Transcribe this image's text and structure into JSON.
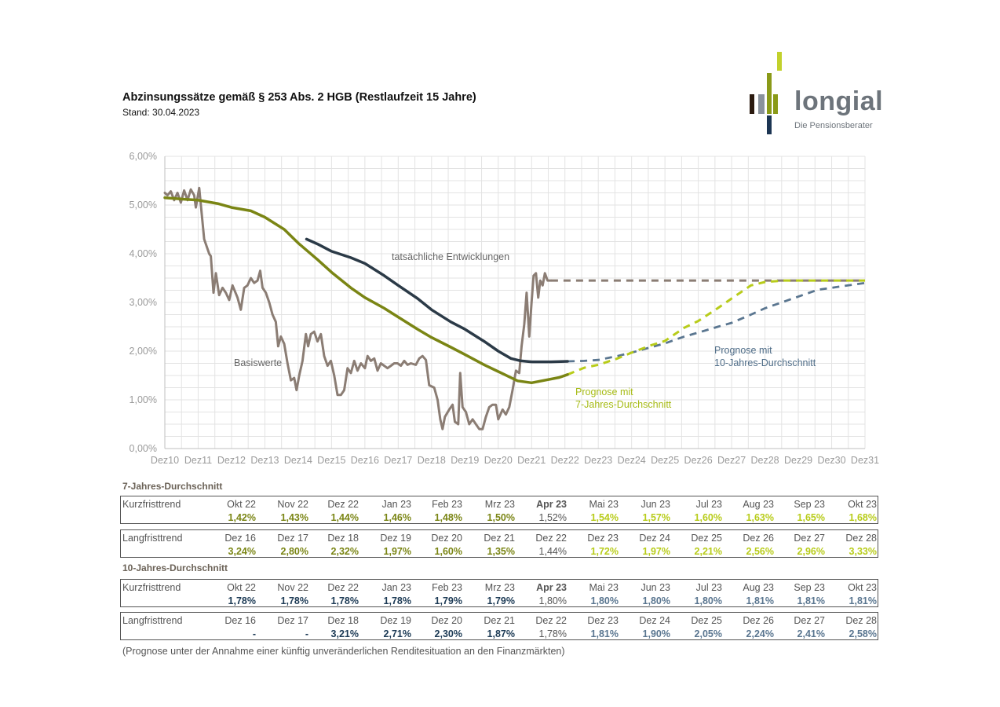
{
  "header": {
    "title": "Abzinsungssätze gemäß § 253 Abs. 2 HGB (Restlaufzeit 15 Jahre)",
    "subtitle": "Stand: 30.04.2023"
  },
  "logo": {
    "word": "longial",
    "tagline": "Die Pensionsberater",
    "colors": [
      "#2b1a0f",
      "#8a929c",
      "#8a9a18",
      "#c2d12c",
      "#1c3553"
    ]
  },
  "colors": {
    "basis": "#8b7d74",
    "seven": "#7a8514",
    "seven_forecast": "#b8cc1a",
    "ten": "#2b3a47",
    "ten_forecast": "#5a7690",
    "grid": "#e3e3e3",
    "axis_text": "#9a9a9a",
    "blue_text": "#1c3a55",
    "green_text": "#7a8514"
  },
  "chart_data": {
    "type": "line",
    "xlim": [
      2010.92,
      2031.92
    ],
    "ylim": [
      0,
      6
    ],
    "y_ticks": [
      "0,00%",
      "1,00%",
      "2,00%",
      "3,00%",
      "4,00%",
      "5,00%",
      "6,00%"
    ],
    "x_ticks": [
      "Dez10",
      "Dez11",
      "Dez12",
      "Dez13",
      "Dez14",
      "Dez15",
      "Dez16",
      "Dez17",
      "Dez18",
      "Dez19",
      "Dez20",
      "Dez21",
      "Dez22",
      "Dez23",
      "Dez24",
      "Dez25",
      "Dez26",
      "Dez27",
      "Dez28",
      "Dez29",
      "Dez30",
      "Dez31"
    ],
    "grid": "on",
    "annotations": {
      "actual": "tatsächliche Entwicklungen",
      "basis": "Basiswerte",
      "forecast7": [
        "Prognose mit",
        "7-Jahres-Durchschnitt"
      ],
      "forecast10": [
        "Prognose mit",
        "10-Jahres-Durchschnitt"
      ]
    },
    "series": [
      {
        "key": "basis",
        "style": "solid",
        "points": [
          [
            2010.92,
            5.25
          ],
          [
            2011.0,
            5.2
          ],
          [
            2011.1,
            5.28
          ],
          [
            2011.2,
            5.1
          ],
          [
            2011.3,
            5.25
          ],
          [
            2011.4,
            5.05
          ],
          [
            2011.5,
            5.3
          ],
          [
            2011.6,
            5.1
          ],
          [
            2011.7,
            5.32
          ],
          [
            2011.8,
            5.2
          ],
          [
            2011.85,
            4.95
          ],
          [
            2011.95,
            5.35
          ],
          [
            2012.0,
            5.0
          ],
          [
            2012.1,
            4.3
          ],
          [
            2012.25,
            4.0
          ],
          [
            2012.3,
            3.95
          ],
          [
            2012.38,
            3.2
          ],
          [
            2012.45,
            3.6
          ],
          [
            2012.55,
            3.15
          ],
          [
            2012.65,
            3.3
          ],
          [
            2012.75,
            3.2
          ],
          [
            2012.85,
            3.05
          ],
          [
            2012.95,
            3.35
          ],
          [
            2013.1,
            3.1
          ],
          [
            2013.2,
            2.85
          ],
          [
            2013.3,
            3.3
          ],
          [
            2013.4,
            3.35
          ],
          [
            2013.5,
            3.5
          ],
          [
            2013.6,
            3.4
          ],
          [
            2013.7,
            3.45
          ],
          [
            2013.78,
            3.65
          ],
          [
            2013.85,
            3.3
          ],
          [
            2013.95,
            3.2
          ],
          [
            2014.05,
            3.0
          ],
          [
            2014.15,
            2.75
          ],
          [
            2014.25,
            2.6
          ],
          [
            2014.32,
            2.1
          ],
          [
            2014.4,
            2.3
          ],
          [
            2014.5,
            2.15
          ],
          [
            2014.6,
            1.75
          ],
          [
            2014.7,
            1.4
          ],
          [
            2014.8,
            1.45
          ],
          [
            2014.87,
            1.2
          ],
          [
            2014.95,
            1.5
          ],
          [
            2015.05,
            1.8
          ],
          [
            2015.15,
            2.35
          ],
          [
            2015.22,
            2.1
          ],
          [
            2015.3,
            2.35
          ],
          [
            2015.4,
            2.4
          ],
          [
            2015.5,
            2.2
          ],
          [
            2015.6,
            2.35
          ],
          [
            2015.7,
            1.9
          ],
          [
            2015.8,
            1.7
          ],
          [
            2015.9,
            1.8
          ],
          [
            2016.0,
            1.5
          ],
          [
            2016.1,
            1.1
          ],
          [
            2016.2,
            1.1
          ],
          [
            2016.3,
            1.2
          ],
          [
            2016.4,
            1.65
          ],
          [
            2016.5,
            1.55
          ],
          [
            2016.6,
            1.8
          ],
          [
            2016.7,
            1.6
          ],
          [
            2016.8,
            1.75
          ],
          [
            2016.92,
            1.65
          ],
          [
            2017.0,
            1.9
          ],
          [
            2017.1,
            1.8
          ],
          [
            2017.2,
            1.85
          ],
          [
            2017.3,
            1.6
          ],
          [
            2017.4,
            1.75
          ],
          [
            2017.5,
            1.7
          ],
          [
            2017.6,
            1.65
          ],
          [
            2017.7,
            1.7
          ],
          [
            2017.8,
            1.75
          ],
          [
            2017.9,
            1.75
          ],
          [
            2018.0,
            1.7
          ],
          [
            2018.1,
            1.8
          ],
          [
            2018.2,
            1.72
          ],
          [
            2018.3,
            1.75
          ],
          [
            2018.45,
            1.72
          ],
          [
            2018.55,
            1.85
          ],
          [
            2018.65,
            1.9
          ],
          [
            2018.75,
            1.82
          ],
          [
            2018.85,
            1.3
          ],
          [
            2019.0,
            1.25
          ],
          [
            2019.1,
            1.0
          ],
          [
            2019.18,
            0.6
          ],
          [
            2019.25,
            0.4
          ],
          [
            2019.32,
            0.65
          ],
          [
            2019.45,
            0.8
          ],
          [
            2019.55,
            0.9
          ],
          [
            2019.62,
            0.55
          ],
          [
            2019.72,
            0.5
          ],
          [
            2019.78,
            1.55
          ],
          [
            2019.85,
            0.85
          ],
          [
            2019.95,
            0.75
          ],
          [
            2020.05,
            0.5
          ],
          [
            2020.15,
            0.6
          ],
          [
            2020.25,
            0.5
          ],
          [
            2020.35,
            0.4
          ],
          [
            2020.45,
            0.4
          ],
          [
            2020.55,
            0.65
          ],
          [
            2020.65,
            0.85
          ],
          [
            2020.75,
            0.9
          ],
          [
            2020.85,
            0.9
          ],
          [
            2020.92,
            0.6
          ],
          [
            2021.05,
            0.8
          ],
          [
            2021.15,
            0.7
          ],
          [
            2021.25,
            0.85
          ],
          [
            2021.35,
            1.2
          ],
          [
            2021.45,
            1.6
          ],
          [
            2021.55,
            1.55
          ],
          [
            2021.62,
            2.1
          ],
          [
            2021.7,
            2.55
          ],
          [
            2021.77,
            3.2
          ],
          [
            2021.85,
            2.3
          ],
          [
            2021.92,
            3.0
          ],
          [
            2021.98,
            3.55
          ],
          [
            2022.05,
            3.6
          ],
          [
            2022.12,
            3.1
          ],
          [
            2022.18,
            3.45
          ],
          [
            2022.25,
            3.35
          ],
          [
            2022.32,
            3.6
          ],
          [
            2022.4,
            3.45
          ],
          [
            2022.5,
            3.45
          ]
        ]
      },
      {
        "key": "seven",
        "style": "solid",
        "points": [
          [
            2010.92,
            5.15
          ],
          [
            2011.5,
            5.12
          ],
          [
            2011.92,
            5.1
          ],
          [
            2012.5,
            5.03
          ],
          [
            2012.92,
            4.95
          ],
          [
            2013.5,
            4.88
          ],
          [
            2013.92,
            4.75
          ],
          [
            2014.5,
            4.5
          ],
          [
            2014.92,
            4.22
          ],
          [
            2015.5,
            3.88
          ],
          [
            2015.92,
            3.62
          ],
          [
            2016.5,
            3.3
          ],
          [
            2016.92,
            3.1
          ],
          [
            2017.5,
            2.88
          ],
          [
            2017.92,
            2.7
          ],
          [
            2018.5,
            2.45
          ],
          [
            2018.92,
            2.28
          ],
          [
            2019.5,
            2.08
          ],
          [
            2019.92,
            1.93
          ],
          [
            2020.5,
            1.72
          ],
          [
            2020.92,
            1.58
          ],
          [
            2021.5,
            1.39
          ],
          [
            2021.92,
            1.35
          ],
          [
            2022.3,
            1.4
          ],
          [
            2022.75,
            1.46
          ],
          [
            2023.0,
            1.52
          ]
        ]
      },
      {
        "key": "ten",
        "style": "solid",
        "points": [
          [
            2015.17,
            4.3
          ],
          [
            2015.5,
            4.2
          ],
          [
            2015.92,
            4.05
          ],
          [
            2016.5,
            3.92
          ],
          [
            2016.92,
            3.8
          ],
          [
            2017.5,
            3.55
          ],
          [
            2017.92,
            3.35
          ],
          [
            2018.5,
            3.08
          ],
          [
            2018.92,
            2.85
          ],
          [
            2019.5,
            2.6
          ],
          [
            2019.92,
            2.45
          ],
          [
            2020.5,
            2.2
          ],
          [
            2020.92,
            2.0
          ],
          [
            2021.3,
            1.85
          ],
          [
            2021.6,
            1.8
          ],
          [
            2021.92,
            1.78
          ],
          [
            2022.5,
            1.78
          ],
          [
            2023.0,
            1.79
          ]
        ]
      },
      {
        "key": "basis_forecast",
        "style": "dashed",
        "points": [
          [
            2022.5,
            3.45
          ],
          [
            2031.92,
            3.45
          ]
        ]
      },
      {
        "key": "seven_forecast",
        "style": "dashed",
        "points": [
          [
            2023.0,
            1.52
          ],
          [
            2023.5,
            1.66
          ],
          [
            2023.92,
            1.72
          ],
          [
            2024.5,
            1.85
          ],
          [
            2024.92,
            1.97
          ],
          [
            2025.5,
            2.12
          ],
          [
            2025.92,
            2.21
          ],
          [
            2026.5,
            2.48
          ],
          [
            2026.92,
            2.62
          ],
          [
            2027.5,
            2.88
          ],
          [
            2027.92,
            3.08
          ],
          [
            2028.5,
            3.35
          ],
          [
            2028.92,
            3.42
          ],
          [
            2029.5,
            3.45
          ],
          [
            2031.92,
            3.45
          ]
        ]
      },
      {
        "key": "ten_forecast",
        "style": "dashed",
        "points": [
          [
            2023.0,
            1.79
          ],
          [
            2023.5,
            1.8
          ],
          [
            2023.92,
            1.82
          ],
          [
            2024.5,
            1.9
          ],
          [
            2024.92,
            1.97
          ],
          [
            2025.5,
            2.08
          ],
          [
            2025.92,
            2.16
          ],
          [
            2026.5,
            2.3
          ],
          [
            2026.92,
            2.38
          ],
          [
            2027.5,
            2.5
          ],
          [
            2027.92,
            2.58
          ],
          [
            2028.5,
            2.75
          ],
          [
            2028.92,
            2.88
          ],
          [
            2029.5,
            3.02
          ],
          [
            2029.92,
            3.12
          ],
          [
            2030.5,
            3.26
          ],
          [
            2031.92,
            3.4
          ]
        ]
      }
    ]
  },
  "tables": {
    "seven_title": "7-Jahres-Durchschnitt",
    "ten_title": "10-Jahres-Durchschnitt",
    "seven_short": {
      "label": "Kurzfristtrend",
      "periods": [
        "Okt 22",
        "Nov 22",
        "Dez 22",
        "Jan 23",
        "Feb 23",
        "Mrz 23",
        "Apr 23",
        "Mai 23",
        "Jun 23",
        "Jul 23",
        "Aug 23",
        "Sep 23",
        "Okt 23"
      ],
      "values": [
        "1,42%",
        "1,43%",
        "1,44%",
        "1,46%",
        "1,48%",
        "1,50%",
        "1,52%",
        "1,54%",
        "1,57%",
        "1,60%",
        "1,63%",
        "1,65%",
        "1,68%"
      ]
    },
    "seven_long": {
      "label": "Langfristtrend",
      "periods": [
        "Dez 16",
        "Dez 17",
        "Dez 18",
        "Dez 19",
        "Dez 20",
        "Dez 21",
        "Dez 22",
        "Dez 23",
        "Dez 24",
        "Dez 25",
        "Dez 26",
        "Dez 27",
        "Dez 28"
      ],
      "values": [
        "3,24%",
        "2,80%",
        "2,32%",
        "1,97%",
        "1,60%",
        "1,35%",
        "1,44%",
        "1,72%",
        "1,97%",
        "2,21%",
        "2,56%",
        "2,96%",
        "3,33%"
      ]
    },
    "ten_short": {
      "label": "Kurzfristtrend",
      "periods": [
        "Okt 22",
        "Nov 22",
        "Dez 22",
        "Jan 23",
        "Feb 23",
        "Mrz 23",
        "Apr 23",
        "Mai 23",
        "Jun 23",
        "Jul 23",
        "Aug 23",
        "Sep 23",
        "Okt 23"
      ],
      "values": [
        "1,78%",
        "1,78%",
        "1,78%",
        "1,78%",
        "1,79%",
        "1,79%",
        "1,80%",
        "1,80%",
        "1,80%",
        "1,80%",
        "1,81%",
        "1,81%",
        "1,81%"
      ]
    },
    "ten_long": {
      "label": "Langfristtrend",
      "periods": [
        "Dez 16",
        "Dez 17",
        "Dez 18",
        "Dez 19",
        "Dez 20",
        "Dez 21",
        "Dez 22",
        "Dez 23",
        "Dez 24",
        "Dez 25",
        "Dez 26",
        "Dez 27",
        "Dez 28"
      ],
      "values": [
        "-",
        "-",
        "3,21%",
        "2,71%",
        "2,30%",
        "1,87%",
        "1,78%",
        "1,81%",
        "1,90%",
        "2,05%",
        "2,24%",
        "2,41%",
        "2,58%"
      ]
    }
  },
  "footnote": "(Prognose unter der Annahme einer künftig unveränderlichen Renditesituation an den Finanzmärkten)"
}
